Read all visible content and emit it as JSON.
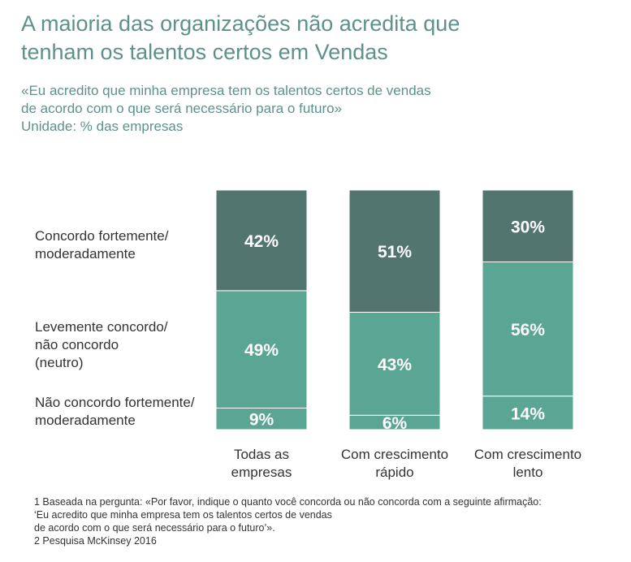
{
  "title_lines": [
    "A maioria das organizações não acredita que",
    "tenham os talentos certos em Vendas"
  ],
  "subtitle_lines": [
    "«Eu acredito que minha empresa tem os talentos certos de vendas",
    "de acordo com o que será necessário para o futuro»",
    "Unidade: % das empresas"
  ],
  "row_labels": [
    [
      "Concordo fortemente/",
      "moderadamente"
    ],
    [
      "Levemente concordo/",
      "não concordo",
      "(neutro)"
    ],
    [
      "Não concordo fortemente/",
      "moderadamente"
    ]
  ],
  "colors": {
    "dark": "#537570",
    "mid": "#5ba595",
    "title": "#5f918b"
  },
  "chart_data": {
    "type": "bar",
    "stacked": true,
    "unit": "%",
    "categories": [
      "Todas as empresas",
      "Com crescimento rápido",
      "Com crescimento lento"
    ],
    "category_lines": [
      [
        "Todas as",
        "empresas"
      ],
      [
        "Com crescimento",
        "rápido"
      ],
      [
        "Com crescimento",
        "lento"
      ]
    ],
    "series": [
      {
        "name": "Não concordo fortemente/ moderadamente",
        "values": [
          9,
          6,
          14
        ]
      },
      {
        "name": "Levemente concordo/ não concordo (neutro)",
        "values": [
          49,
          43,
          56
        ]
      },
      {
        "name": "Concordo fortemente/ moderadamente",
        "values": [
          42,
          51,
          30
        ]
      }
    ],
    "labels": [
      [
        "9%",
        "49%",
        "42%"
      ],
      [
        "6%",
        "43%",
        "51%"
      ],
      [
        "14%",
        "56%",
        "30%"
      ]
    ],
    "ylim": [
      0,
      100
    ]
  },
  "footnotes": [
    "1 Baseada na pergunta: «Por favor, indique o quanto você concorda ou não concorda com a seguinte afirmação:",
    "‘Eu acredito que minha empresa tem os talentos certos de vendas",
    "de acordo com o que será necessário para o futuro’».",
    "2 Pesquisa McKinsey 2016"
  ]
}
